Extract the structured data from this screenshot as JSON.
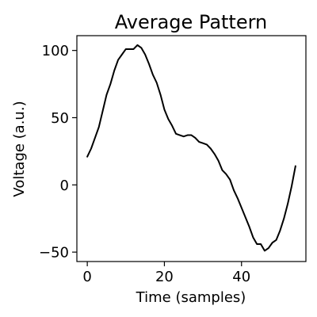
{
  "chart_data": {
    "type": "line",
    "title": "Average Pattern",
    "xlabel": "Time (samples)",
    "ylabel": "Voltage (a.u.)",
    "xlim": [
      -2.7,
      56.7
    ],
    "ylim": [
      -57,
      111
    ],
    "xticks": [
      0,
      20,
      40
    ],
    "yticks": [
      -50,
      0,
      50,
      100
    ],
    "xtick_labels": [
      "0",
      "20",
      "40"
    ],
    "ytick_labels": [
      "−50",
      "0",
      "50",
      "100"
    ],
    "grid": false,
    "line_color": "#000000",
    "series": [
      {
        "x": [
          0,
          1,
          2,
          3,
          4,
          5,
          6,
          7,
          8,
          9,
          10,
          11,
          12,
          13,
          14,
          15,
          16,
          17,
          18,
          19,
          20,
          21,
          22,
          23,
          24,
          25,
          26,
          27,
          28,
          29,
          30,
          31,
          32,
          33,
          34,
          35,
          36,
          37,
          38,
          39,
          40,
          41,
          42,
          43,
          44,
          45,
          46,
          47,
          48,
          49,
          50,
          51,
          52,
          53,
          54
        ],
        "y": [
          21,
          27,
          35,
          43,
          55,
          67,
          75,
          85,
          93,
          97,
          101,
          101,
          101,
          104,
          102,
          97,
          90,
          82,
          76,
          67,
          56,
          49,
          44,
          38,
          37,
          36,
          37,
          37,
          35,
          32,
          31,
          30,
          27,
          23,
          18,
          11,
          8,
          4,
          -4,
          -10,
          -17,
          -24,
          -31,
          -39,
          -44,
          -44,
          -49,
          -47,
          -43,
          -41,
          -34,
          -25,
          -14,
          -1,
          14
        ]
      }
    ]
  }
}
